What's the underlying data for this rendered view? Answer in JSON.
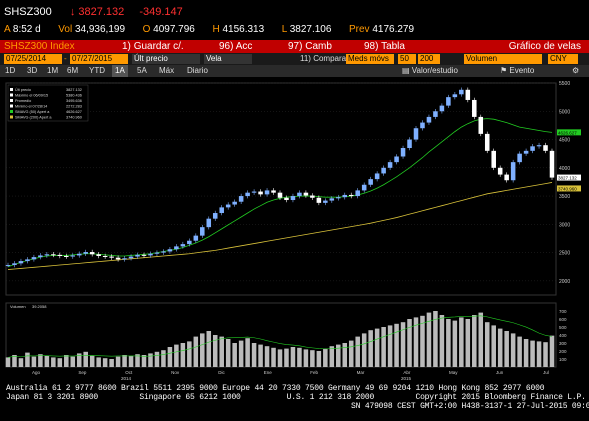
{
  "header": {
    "symbol": "SHSZ300",
    "arrow": "↓",
    "last_price": "3827.132",
    "change": "-349.147",
    "time_label": "A",
    "time": "8:52 d",
    "vol_label": "Vol",
    "volume": "34,936,199",
    "open_label": "O",
    "open": "4097.796",
    "high_label": "H",
    "high": "4156.313",
    "low_label": "L",
    "low": "3827.106",
    "prev_label": "Prev",
    "prev": "4176.279"
  },
  "toolbar": {
    "index_label": "SHSZ300 Index",
    "save_num": "1)",
    "save_label": "Guardar c/.",
    "acc_num": "96)",
    "acc_label": "Acc",
    "camb_num": "97)",
    "camb_label": "Camb",
    "tabla_num": "98)",
    "tabla_label": "Tabla",
    "title": "Gráfico de velas"
  },
  "controls": {
    "start_date": "07/25/2014",
    "end_date": "07/27/2015",
    "price_field": "Últ precio",
    "chart_type": "Vela",
    "compare_num": "11)",
    "compare_label": "Comparar",
    "moving_avgs": "Meds móvs",
    "ma1": "50",
    "ma2": "200",
    "volume_field": "Volumen",
    "currency": "CNY"
  },
  "tabs": {
    "items": [
      "1D",
      "3D",
      "1M",
      "6M",
      "YTD",
      "1A",
      "5A",
      "Máx"
    ],
    "active": "1A",
    "period": "Diario",
    "value_study": "Valor/estudio",
    "event": "Evento"
  },
  "legend": {
    "items": [
      "Últ precio",
      "Máximo el 06/09/15",
      "Promedio",
      "Mínimo el 07/28/14",
      "SMAVG (50) Apert a",
      "SMAVG (200) Apert a"
    ],
    "values": [
      "3827.132",
      "5380.436",
      "3495.636",
      "2272.283",
      "4626.627",
      "3740.960"
    ]
  },
  "volume_legend": {
    "label": "Volumen",
    "value": "39.2058"
  },
  "colors": {
    "background": "#000000",
    "candle_up": "#7fb0ff",
    "candle_down": "#ffffff",
    "ma50": "#22cc22",
    "ma200": "#d9c23a",
    "volume": "#bbbbbb",
    "grid": "#2a2a2a",
    "accent": "#c00000",
    "amber": "#ff9900"
  },
  "chart_data": {
    "type": "line",
    "ylim": [
      1750,
      5500
    ],
    "y_ticks": [
      2000,
      2500,
      3000,
      3500,
      4000,
      4500,
      5000,
      5500
    ],
    "y_tick_labels": [
      "2000",
      "2500",
      "3000",
      "3500",
      "4000",
      "4500",
      "5000",
      "5500"
    ],
    "x_ticks": [
      "Ago",
      "Sep",
      "Oct",
      "Nov",
      "Dic",
      "Ene",
      "Feb",
      "Mar",
      "Abr",
      "May",
      "Jun",
      "Jul"
    ],
    "year_labels": [
      "2014",
      "2015"
    ],
    "right_labels": [
      "4626.627",
      "3827.132",
      "3740.960"
    ],
    "price_series": [
      2280,
      2310,
      2350,
      2380,
      2420,
      2450,
      2470,
      2460,
      2440,
      2430,
      2450,
      2480,
      2510,
      2470,
      2440,
      2430,
      2410,
      2380,
      2400,
      2430,
      2460,
      2450,
      2480,
      2500,
      2520,
      2560,
      2610,
      2650,
      2710,
      2800,
      2950,
      3100,
      3200,
      3300,
      3350,
      3400,
      3500,
      3560,
      3580,
      3530,
      3600,
      3560,
      3470,
      3430,
      3500,
      3560,
      3510,
      3470,
      3380,
      3420,
      3460,
      3480,
      3520,
      3500,
      3600,
      3700,
      3800,
      3900,
      4000,
      4100,
      4200,
      4350,
      4500,
      4700,
      4800,
      4900,
      5000,
      5100,
      5250,
      5300,
      5380,
      5200,
      4900,
      4600,
      4300,
      4000,
      3880,
      3780,
      4100,
      4250,
      4300,
      4380,
      4400,
      4300,
      3827
    ],
    "ma50_series": [
      2250,
      2290,
      2330,
      2360,
      2390,
      2420,
      2440,
      2450,
      2450,
      2450,
      2460,
      2470,
      2480,
      2480,
      2470,
      2460,
      2450,
      2440,
      2440,
      2450,
      2460,
      2470,
      2480,
      2500,
      2520,
      2540,
      2560,
      2590,
      2630,
      2670,
      2720,
      2780,
      2850,
      2920,
      2990,
      3060,
      3130,
      3200,
      3270,
      3330,
      3390,
      3430,
      3460,
      3480,
      3490,
      3500,
      3500,
      3500,
      3490,
      3480,
      3480,
      3480,
      3490,
      3500,
      3520,
      3550,
      3590,
      3640,
      3700,
      3770,
      3840,
      3920,
      4000,
      4090,
      4180,
      4280,
      4370,
      4460,
      4550,
      4640,
      4720,
      4780,
      4830,
      4860,
      4870,
      4860,
      4830,
      4800,
      4760,
      4720,
      4700,
      4680,
      4660,
      4640,
      4627
    ],
    "ma200_series": [
      2200,
      2210,
      2220,
      2230,
      2240,
      2250,
      2260,
      2270,
      2280,
      2290,
      2300,
      2310,
      2320,
      2330,
      2340,
      2350,
      2360,
      2370,
      2380,
      2390,
      2400,
      2410,
      2420,
      2430,
      2440,
      2450,
      2460,
      2470,
      2480,
      2495,
      2510,
      2525,
      2540,
      2560,
      2580,
      2600,
      2620,
      2640,
      2660,
      2680,
      2700,
      2720,
      2740,
      2760,
      2780,
      2800,
      2820,
      2840,
      2860,
      2880,
      2900,
      2920,
      2940,
      2960,
      2980,
      3000,
      3020,
      3045,
      3070,
      3095,
      3120,
      3150,
      3180,
      3210,
      3240,
      3270,
      3300,
      3330,
      3360,
      3390,
      3420,
      3450,
      3480,
      3510,
      3540,
      3560,
      3580,
      3600,
      3620,
      3640,
      3660,
      3680,
      3700,
      3720,
      3741
    ],
    "volume_ylim": [
      0,
      800
    ],
    "volume_ticks": [
      "700",
      "600",
      "500",
      "400",
      "300",
      "200",
      "100"
    ],
    "volume_series": [
      120,
      150,
      110,
      180,
      130,
      160,
      140,
      120,
      110,
      150,
      130,
      170,
      190,
      140,
      120,
      110,
      100,
      130,
      150,
      140,
      160,
      150,
      170,
      190,
      210,
      250,
      280,
      300,
      320,
      380,
      420,
      450,
      400,
      380,
      350,
      300,
      330,
      360,
      300,
      280,
      260,
      240,
      220,
      230,
      250,
      240,
      220,
      210,
      200,
      230,
      260,
      280,
      300,
      330,
      380,
      420,
      460,
      480,
      500,
      520,
      540,
      560,
      600,
      620,
      640,
      680,
      700,
      650,
      600,
      580,
      620,
      600,
      650,
      680,
      560,
      520,
      480,
      450,
      420,
      380,
      350,
      330,
      320,
      310,
      392
    ]
  },
  "footer": {
    "line1": "Australia 61 2 9777 8600 Brazil 5511 2395 9000 Europe 44 20 7330 7500 Germany 49 69 9204 1210 Hong Kong 852 2977 6000",
    "line2": "Japan 81 3 3201 8900         Singapore 65 6212 1000          U.S. 1 212 318 2000         Copyright 2015 Bloomberg Finance L.P.",
    "line3": "                                                                           SN 479098 CEST GMT+2:00 H438-3137-1 27-Jul-2015 09:08:21"
  }
}
